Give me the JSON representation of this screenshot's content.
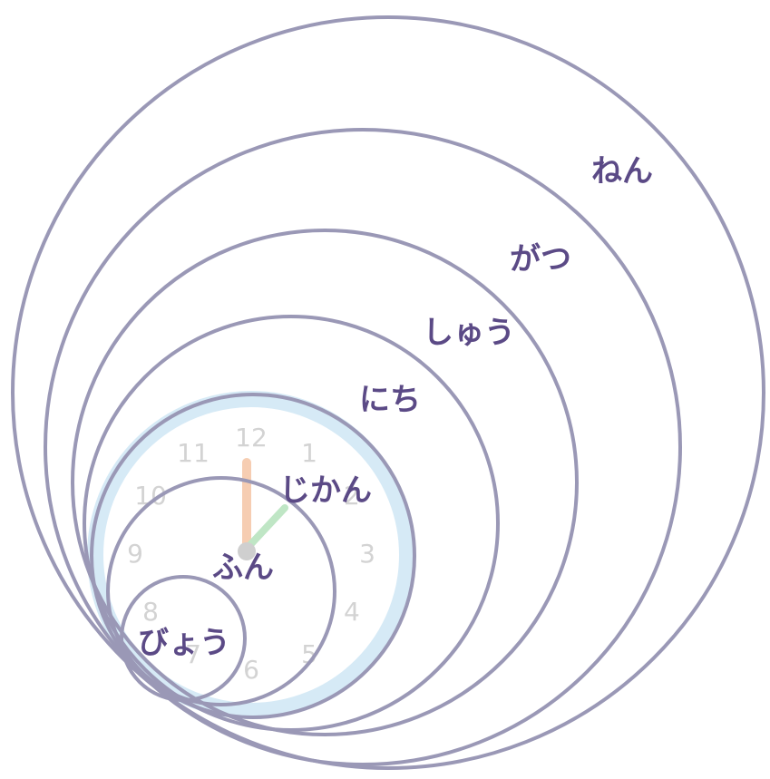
{
  "rings": [
    {
      "id": "nen",
      "label": "ねん"
    },
    {
      "id": "gatsu",
      "label": "がつ"
    },
    {
      "id": "shuu",
      "label": "しゅう"
    },
    {
      "id": "nichi",
      "label": "にち"
    },
    {
      "id": "jikan",
      "label": "じかん"
    },
    {
      "id": "fun",
      "label": "ふん"
    },
    {
      "id": "byou",
      "label": "びょう"
    }
  ],
  "clock": {
    "numerals": [
      "12",
      "1",
      "2",
      "3",
      "4",
      "5",
      "6",
      "7",
      "8",
      "9",
      "10",
      "11"
    ],
    "hour_hand_hour": 12,
    "minute_hand_minute": 5
  },
  "colors": {
    "ring_stroke": "#9a98b6",
    "label": "#5b4a86",
    "clock_bezel": "#d6eaf6",
    "clock_numerals": "#d3d3d3",
    "hour_hand": "#f6cdb2",
    "minute_hand": "#bfe6c5",
    "clock_center": "#cfcfcf"
  }
}
